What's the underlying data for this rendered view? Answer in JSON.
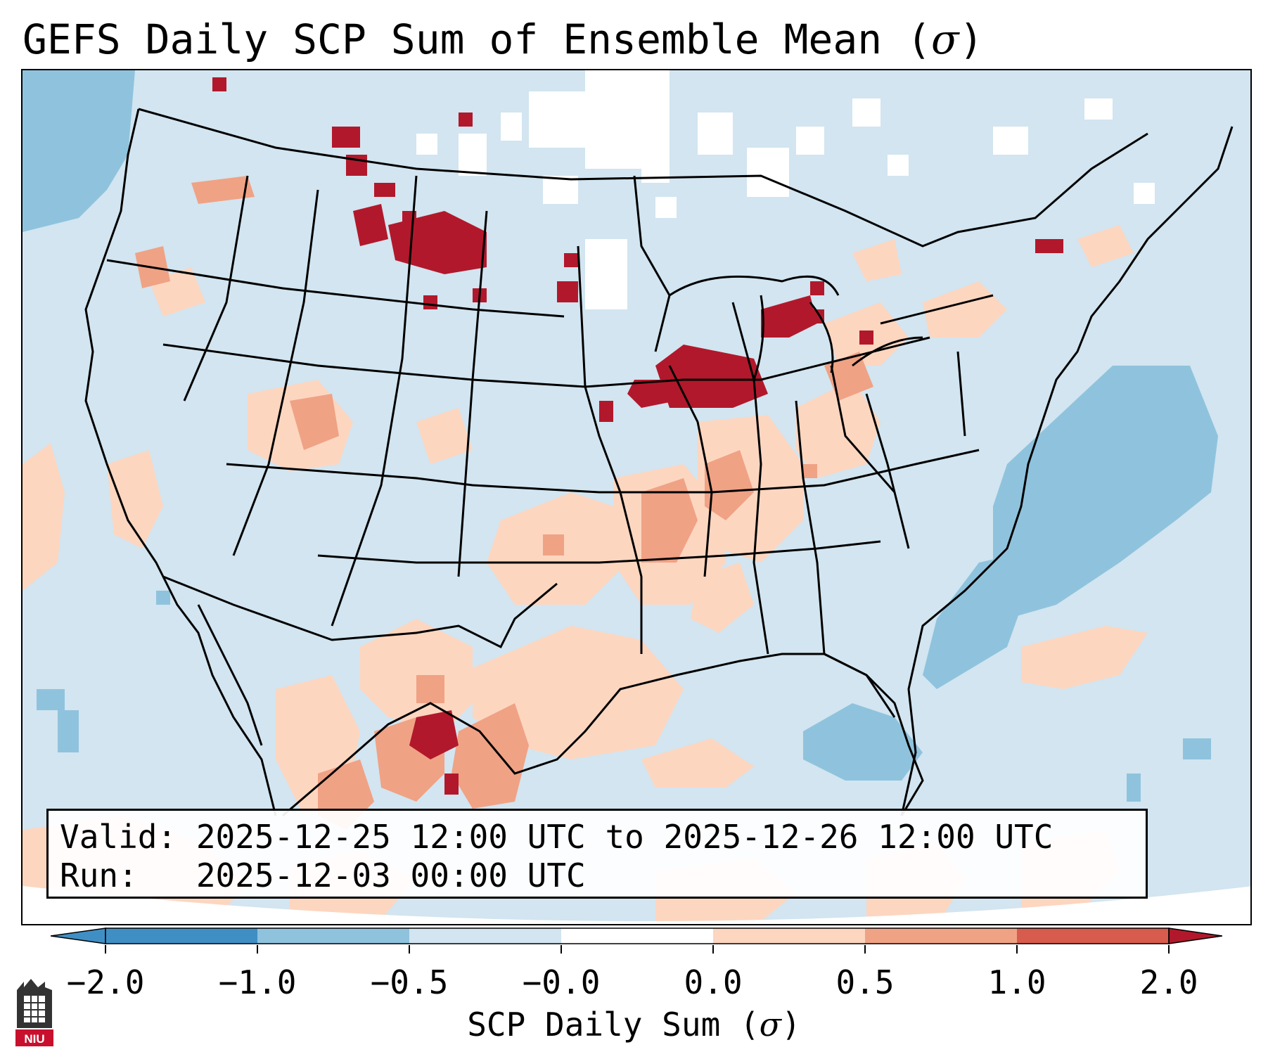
{
  "title": {
    "text": "GEFS Daily SCP Sum of Ensemble Mean (",
    "symbol": "σ",
    "close": ")"
  },
  "info": {
    "valid_line": "Valid: 2025-12-25 12:00 UTC to 2025-12-26 12:00 UTC",
    "run_line": "Run:   2025-12-03 00:00 UTC"
  },
  "colorbar": {
    "ticks": [
      "−2.0",
      "−1.0",
      "−0.5",
      "−0.0",
      "0.0",
      "0.5",
      "1.0",
      "2.0"
    ],
    "colors": [
      "#3f8fc5",
      "#8fc3dd",
      "#d2e5f0",
      "#ffffff",
      "#fdd6c0",
      "#f0a285",
      "#d75c4d",
      "#b2182b"
    ],
    "label_text": "SCP Daily Sum (",
    "label_symbol": "σ",
    "label_close": ")"
  },
  "logo": {
    "text": "NIU"
  },
  "palette": {
    "ocean_bg": "#d2e5f0",
    "light_blue": "#8fc3dd",
    "white": "#ffffff",
    "pale_red": "#fdd6c0",
    "mid_red": "#f0a285",
    "dark_red": "#b2182b"
  }
}
